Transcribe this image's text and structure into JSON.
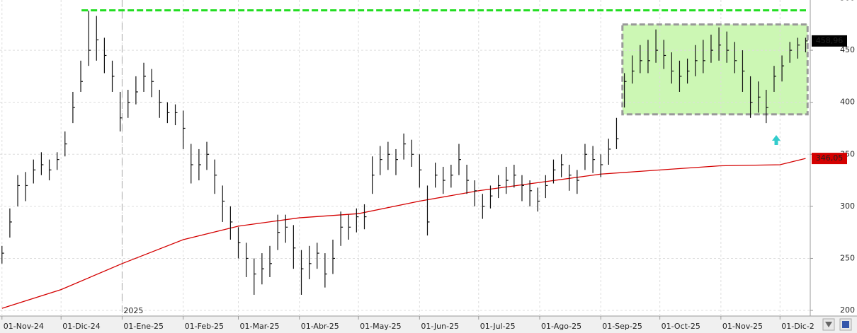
{
  "chart_data": {
    "type": "ohlc",
    "year_label": "2025",
    "bar_color": "#111111",
    "xlim": [
      -1,
      410
    ],
    "ylim": [
      194.6,
      498.3
    ],
    "grid": true,
    "xticks": [
      {
        "value": 0,
        "label": "01-Nov-24"
      },
      {
        "value": 30,
        "label": "01-Dic-24"
      },
      {
        "value": 61,
        "label": "01-Ene-25"
      },
      {
        "value": 92,
        "label": "01-Feb-25"
      },
      {
        "value": 120,
        "label": "01-Mar-25"
      },
      {
        "value": 151,
        "label": "01-Abr-25"
      },
      {
        "value": 181,
        "label": "01-May-25"
      },
      {
        "value": 212,
        "label": "01-Jun-25"
      },
      {
        "value": 242,
        "label": "01-Jul-25"
      },
      {
        "value": 273,
        "label": "01-Ago-25"
      },
      {
        "value": 304,
        "label": "01-Sep-25"
      },
      {
        "value": 334,
        "label": "01-Oct-25"
      },
      {
        "value": 365,
        "label": "01-Nov-25"
      },
      {
        "value": 395,
        "label": "01-Dic-2"
      }
    ],
    "yticks": [
      200,
      250,
      300,
      350,
      400,
      450,
      500
    ],
    "x": [
      0,
      4,
      8,
      12,
      16,
      20,
      24,
      28,
      32,
      36,
      40,
      44,
      48,
      52,
      56,
      60,
      64,
      68,
      72,
      76,
      80,
      84,
      88,
      92,
      96,
      100,
      104,
      108,
      112,
      116,
      120,
      124,
      128,
      132,
      136,
      140,
      144,
      148,
      152,
      156,
      160,
      164,
      168,
      172,
      176,
      180,
      184,
      188,
      192,
      196,
      200,
      204,
      208,
      212,
      216,
      220,
      224,
      228,
      232,
      236,
      240,
      244,
      248,
      252,
      256,
      260,
      264,
      268,
      272,
      276,
      280,
      284,
      288,
      292,
      296,
      300,
      304,
      308,
      312,
      316,
      320,
      324,
      328,
      332,
      336,
      340,
      344,
      348,
      352,
      356,
      360,
      364,
      368,
      372,
      376,
      380,
      384,
      388,
      392,
      396,
      400,
      404,
      408
    ],
    "high": [
      262,
      298,
      330,
      333,
      345,
      352,
      345,
      352,
      372,
      410,
      440,
      488,
      483,
      462,
      440,
      410,
      412,
      425,
      438,
      432,
      412,
      400,
      398,
      392,
      360,
      355,
      362,
      345,
      320,
      300,
      280,
      265,
      250,
      255,
      262,
      292,
      292,
      282,
      258,
      262,
      265,
      255,
      268,
      295,
      292,
      298,
      302,
      348,
      358,
      362,
      355,
      370,
      364,
      350,
      320,
      342,
      338,
      340,
      360,
      340,
      325,
      312,
      320,
      330,
      338,
      340,
      330,
      325,
      318,
      330,
      345,
      350,
      340,
      335,
      360,
      358,
      350,
      365,
      385,
      428,
      445,
      455,
      460,
      470,
      460,
      448,
      440,
      442,
      455,
      460,
      465,
      472,
      468,
      458,
      450,
      425,
      420,
      412,
      435,
      445,
      458,
      462,
      462
    ],
    "low": [
      245,
      270,
      300,
      305,
      322,
      330,
      325,
      335,
      348,
      380,
      410,
      435,
      440,
      428,
      410,
      372,
      385,
      398,
      410,
      405,
      385,
      380,
      378,
      355,
      322,
      325,
      335,
      312,
      285,
      268,
      250,
      232,
      215,
      225,
      232,
      258,
      265,
      240,
      215,
      230,
      240,
      222,
      235,
      262,
      268,
      275,
      278,
      312,
      330,
      335,
      330,
      345,
      338,
      318,
      272,
      318,
      312,
      318,
      330,
      312,
      300,
      288,
      298,
      308,
      312,
      318,
      305,
      300,
      295,
      308,
      322,
      328,
      315,
      312,
      335,
      332,
      328,
      340,
      355,
      395,
      418,
      428,
      428,
      438,
      432,
      418,
      410,
      418,
      425,
      428,
      438,
      440,
      438,
      428,
      410,
      385,
      390,
      380,
      410,
      420,
      438,
      442,
      448
    ],
    "close": [
      255,
      285,
      320,
      320,
      335,
      340,
      335,
      345,
      360,
      395,
      420,
      450,
      460,
      445,
      425,
      385,
      400,
      410,
      425,
      420,
      400,
      390,
      390,
      375,
      340,
      340,
      350,
      330,
      305,
      285,
      265,
      250,
      235,
      240,
      245,
      275,
      280,
      260,
      240,
      245,
      255,
      235,
      250,
      280,
      280,
      290,
      290,
      330,
      345,
      350,
      345,
      360,
      350,
      335,
      285,
      330,
      325,
      330,
      345,
      325,
      315,
      300,
      310,
      320,
      325,
      330,
      320,
      315,
      305,
      320,
      335,
      340,
      330,
      325,
      350,
      345,
      340,
      355,
      365,
      420,
      430,
      440,
      440,
      450,
      445,
      430,
      425,
      430,
      440,
      440,
      450,
      455,
      450,
      440,
      430,
      400,
      405,
      395,
      425,
      435,
      450,
      455,
      458.96
    ],
    "close_label": "458,96",
    "moving_average": {
      "color": "#d40000",
      "x": [
        0,
        30,
        61,
        92,
        120,
        151,
        181,
        212,
        242,
        273,
        304,
        334,
        365,
        395,
        408
      ],
      "values": [
        202,
        220,
        245,
        268,
        281,
        289,
        293,
        305,
        315,
        323,
        331,
        335,
        339,
        340,
        346.05
      ],
      "value_label": "346,05"
    },
    "resistance": {
      "value": 488.4,
      "color": "#22dd22"
    },
    "range_box": {
      "x": [
        315,
        409
      ],
      "y": [
        388.4,
        474.8
      ],
      "color": "#ccf7b4"
    }
  }
}
